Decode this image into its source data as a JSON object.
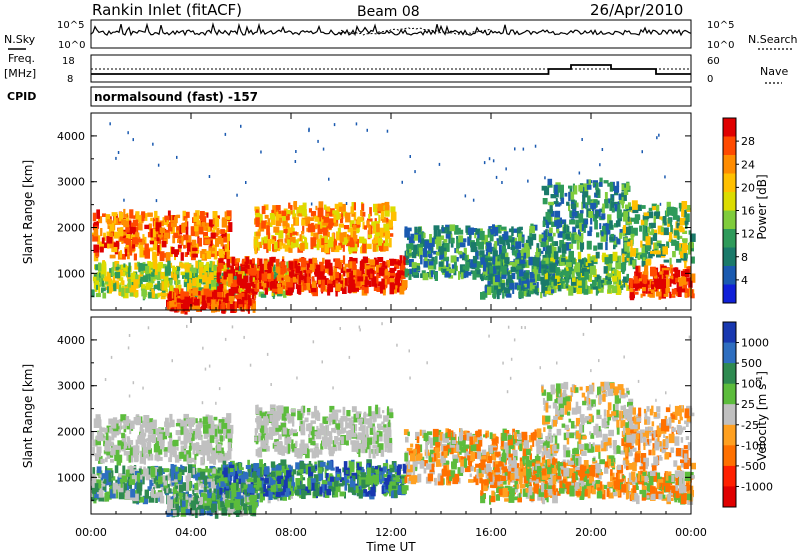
{
  "header": {
    "station": "Rankin Inlet (fitACF)",
    "beam": "Beam 08",
    "date": "26/Apr/2010"
  },
  "noise_panel": {
    "left_label": "N.Sky",
    "left_ticks": [
      "10^5",
      "10^0"
    ],
    "right_ticks": [
      "10^5",
      "10^0"
    ],
    "right_label": "N.Search"
  },
  "freq_panel": {
    "left_label_1": "Freq.",
    "left_label_2": "[MHz]",
    "left_ticks": [
      "18",
      "8"
    ],
    "right_ticks": [
      "60",
      "0"
    ],
    "right_label": "Nave"
  },
  "cpid": {
    "label": "CPID",
    "value": "normalsound (fast) -157"
  },
  "chart_data": [
    {
      "type": "heatmap",
      "title": "",
      "xlabel": "",
      "ylabel": "Slant Range [km]",
      "yticks": [
        "1000",
        "2000",
        "3000",
        "4000"
      ],
      "ylim": [
        200,
        4500
      ],
      "xlim": [
        0,
        24
      ],
      "colorbar": {
        "label": "Power [dB]",
        "ticks": [
          "28",
          "24",
          "20",
          "16",
          "12",
          "8",
          "4"
        ],
        "colors": [
          "#e00000",
          "#ff4a00",
          "#ff8c00",
          "#ffc000",
          "#dcdc00",
          "#7fcc3c",
          "#2e9a5a",
          "#1a7a6a",
          "#1a5ab0",
          "#1020d8"
        ]
      }
    },
    {
      "type": "heatmap",
      "title": "",
      "xlabel": "Time UT",
      "ylabel": "Slant Range [km]",
      "xticks": [
        "00:00",
        "04:00",
        "08:00",
        "12:00",
        "16:00",
        "20:00",
        "00:00"
      ],
      "yticks": [
        "1000",
        "2000",
        "3000",
        "4000"
      ],
      "ylim": [
        200,
        4500
      ],
      "xlim": [
        0,
        24
      ],
      "colorbar": {
        "label": "Velocity [m s^-1]",
        "ticks": [
          "1000",
          "500",
          "100",
          "25",
          "-25",
          "-100",
          "-500",
          "-1000"
        ],
        "colors": [
          "#1838b0",
          "#2e6ec0",
          "#2e8a50",
          "#5cbc3c",
          "#c0c0c0",
          "#ffa020",
          "#ff7000",
          "#ff2000",
          "#e00000"
        ]
      }
    }
  ]
}
